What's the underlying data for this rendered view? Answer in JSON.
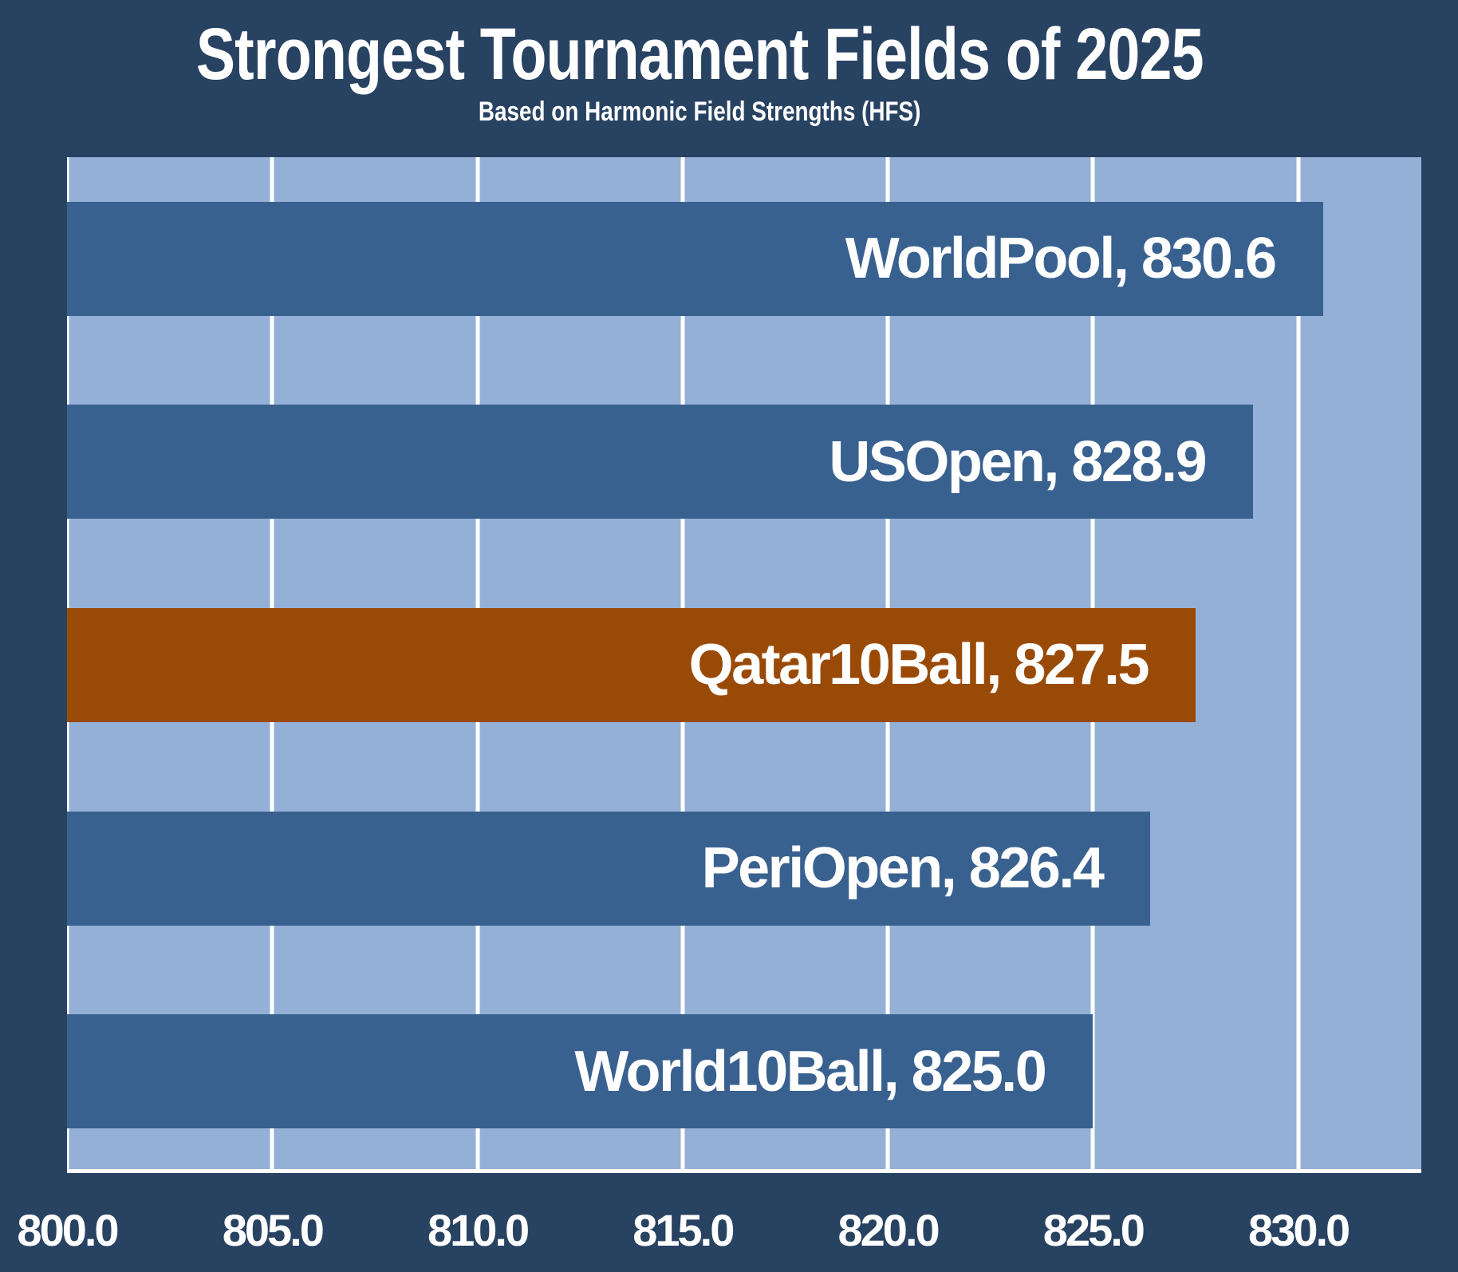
{
  "page": {
    "background_color": "#284262"
  },
  "chart_data": {
    "type": "bar",
    "orientation": "horizontal",
    "title": "Strongest Tournament Fields of 2025",
    "subtitle": "Based on Harmonic Field Strengths (HFS)",
    "categories": [
      "WorldPool",
      "USOpen",
      "Qatar10Ball",
      "PeriOpen",
      "World10Ball"
    ],
    "values": [
      830.6,
      828.9,
      827.5,
      826.4,
      825.0
    ],
    "bar_labels": [
      "WorldPool, 830.6",
      "USOpen, 828.9",
      "Qatar10Ball, 827.5",
      "PeriOpen, 826.4",
      "World10Ball, 825.0"
    ],
    "highlight_index": 2,
    "xlim": [
      800,
      833
    ],
    "x_ticks": [
      800,
      805,
      810,
      815,
      820,
      825,
      830
    ],
    "x_tick_labels": [
      "800.0",
      "805.0",
      "810.0",
      "815.0",
      "820.0",
      "825.0",
      "830.0"
    ],
    "grid": "vertical-gridlines-on",
    "legend": "none",
    "ylabel": "",
    "xlabel": "",
    "colors": {
      "background": "#284262",
      "plot_background": "#95B0D6",
      "bar": "#396190",
      "bar_highlight": "#9A4A07",
      "gridline": "#FFFFFF",
      "text": "#FFFFFF"
    }
  }
}
